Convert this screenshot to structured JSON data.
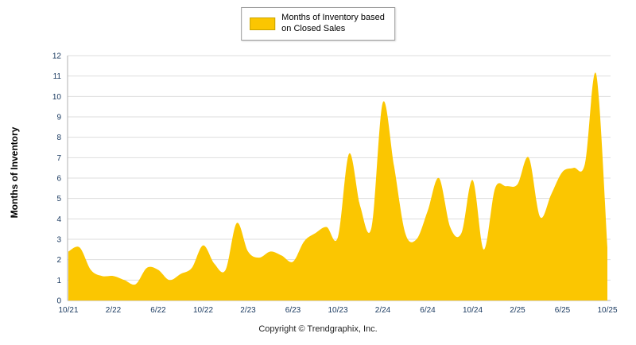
{
  "legend": {
    "line1": "Months of Inventory based",
    "line2": "on Closed Sales"
  },
  "yaxis": {
    "label": "Months of Inventory"
  },
  "footer": {
    "copyright": "Copyright © Trendgraphix, Inc."
  },
  "colors": {
    "area": "#FBC601",
    "grid": "#DDDDDD",
    "axis": "#B0B0B0",
    "tick_text": "#17375E"
  },
  "chart_data": {
    "type": "area",
    "title": "Months of Inventory based on Closed Sales",
    "ylabel": "Months of Inventory",
    "ylim": [
      0,
      12
    ],
    "y_tick_step": 1,
    "x_tick_every": 4,
    "grid": true,
    "legend_position": "top-center",
    "categories": [
      "10/21",
      "11/21",
      "12/21",
      "1/22",
      "2/22",
      "3/22",
      "4/22",
      "5/22",
      "6/22",
      "7/22",
      "8/22",
      "9/22",
      "10/22",
      "11/22",
      "12/22",
      "1/23",
      "2/23",
      "3/23",
      "4/23",
      "5/23",
      "6/23",
      "7/23",
      "8/23",
      "9/23",
      "10/23",
      "11/23",
      "12/23",
      "1/24",
      "2/24",
      "3/24",
      "4/24",
      "5/24",
      "6/24",
      "7/24",
      "8/24",
      "9/24",
      "10/24",
      "11/24",
      "12/24",
      "1/25",
      "2/25",
      "3/25",
      "4/25",
      "5/25",
      "6/25",
      "7/25",
      "8/25",
      "9/25",
      "10/25"
    ],
    "values": [
      2.4,
      2.6,
      1.5,
      1.2,
      1.2,
      1.0,
      0.8,
      1.6,
      1.5,
      1.0,
      1.3,
      1.6,
      2.7,
      1.8,
      1.5,
      3.8,
      2.4,
      2.1,
      2.4,
      2.2,
      1.9,
      2.9,
      3.3,
      3.6,
      3.1,
      7.2,
      4.6,
      3.6,
      9.7,
      6.6,
      3.3,
      3.0,
      4.4,
      6.0,
      3.6,
      3.3,
      5.9,
      2.5,
      5.5,
      5.6,
      5.7,
      7.0,
      4.1,
      5.2,
      6.3,
      6.5,
      6.7,
      11.1,
      2.6
    ]
  }
}
